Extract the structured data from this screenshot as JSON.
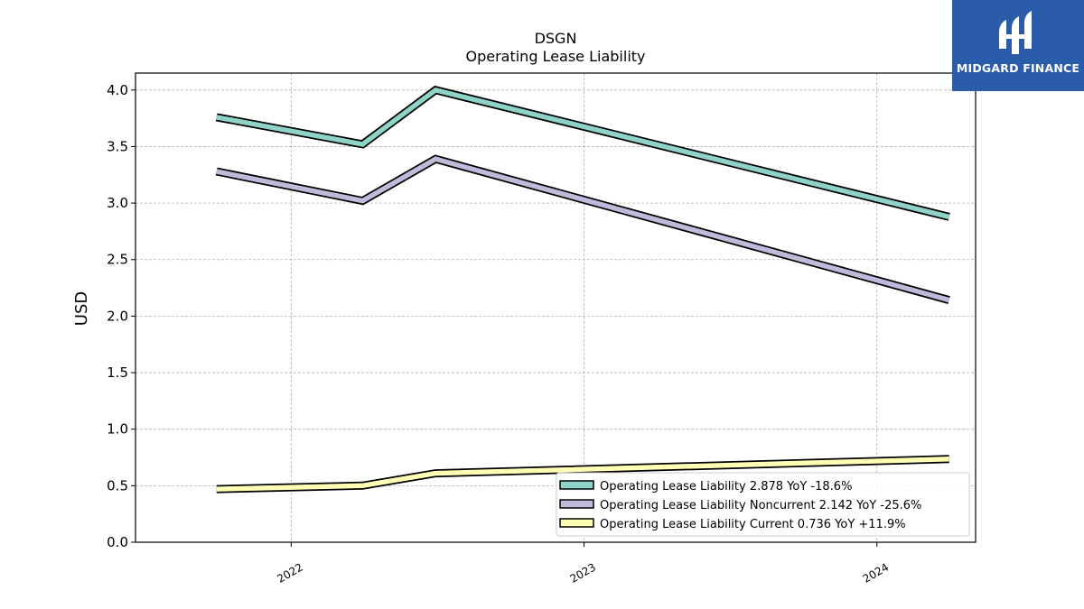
{
  "chart_data": {
    "type": "line",
    "title": "DSGN",
    "subtitle": "Operating Lease Liability",
    "xlabel": "",
    "ylabel": "USD",
    "ylim": [
      0,
      4.15
    ],
    "yticks": [
      "0.0",
      "0.5",
      "1.0",
      "1.5",
      "2.0",
      "2.5",
      "3.0",
      "3.5",
      "4.0"
    ],
    "xticks": [
      "2022",
      "2023",
      "2024"
    ],
    "grid": true,
    "legend_position": "lower-right",
    "x": [
      "2021-09-30",
      "2022-03-31",
      "2022-06-30",
      "2024-03-31"
    ],
    "series": [
      {
        "name": "Operating Lease Liability  2.878 YoY -18.6%",
        "color": "#8dd3c7",
        "values": [
          3.76,
          3.52,
          4.0,
          2.878
        ]
      },
      {
        "name": "Operating Lease Liability Noncurrent  2.142 YoY -25.6%",
        "color": "#bebada",
        "values": [
          3.28,
          3.02,
          3.39,
          2.142
        ]
      },
      {
        "name": "Operating Lease Liability Current  0.736 YoY +11.9%",
        "color": "#ffffb3",
        "values": [
          0.47,
          0.5,
          0.61,
          0.736
        ]
      }
    ]
  },
  "logo": {
    "text": "MIDGARD FINANCE",
    "color": "#2a5caa"
  }
}
